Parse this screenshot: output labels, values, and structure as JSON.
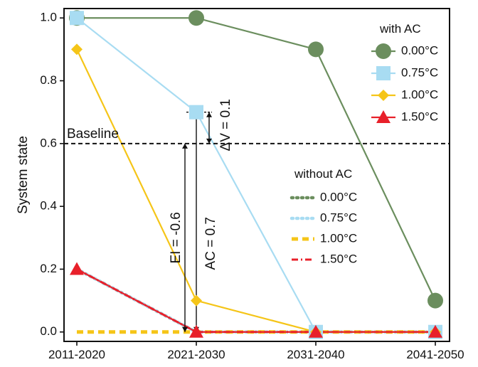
{
  "chart_data": {
    "type": "line",
    "categories": [
      "2011-2020",
      "2021-2030",
      "2031-2040",
      "2041-2050"
    ],
    "ylabel": "System state",
    "xlabel": "",
    "ylim": [
      -0.03,
      1.03
    ],
    "yticks": [
      0.0,
      0.2,
      0.4,
      0.6,
      0.8,
      1.0
    ],
    "ytick_labels": [
      "0.0",
      "0.2",
      "0.4",
      "0.6",
      "0.8",
      "1.0"
    ],
    "grid": false,
    "legend_placement": "right",
    "baseline": {
      "label": "Baseline",
      "value": 0.6
    },
    "with_ac": {
      "legend_title": "with AC",
      "series": [
        {
          "name": "0.00°C",
          "color": "#6b8e5e",
          "marker": "circle",
          "values": [
            1.0,
            1.0,
            0.9,
            0.1
          ]
        },
        {
          "name": "0.75°C",
          "color": "#a8dcf2",
          "marker": "square",
          "values": [
            1.0,
            0.7,
            0.0,
            0.0
          ]
        },
        {
          "name": "1.00°C",
          "color": "#f5c518",
          "marker": "diamond",
          "values": [
            0.9,
            0.1,
            0.0,
            0.0
          ]
        },
        {
          "name": "1.50°C",
          "color": "#e8202a",
          "marker": "triangle",
          "values": [
            0.2,
            0.0,
            0.0,
            0.0
          ]
        }
      ]
    },
    "without_ac": {
      "legend_title": "without AC",
      "series": [
        {
          "name": "0.00°C",
          "color": "#6b8e5e",
          "dash": "dot",
          "values": [
            0.2,
            0.0,
            0.0,
            0.0
          ]
        },
        {
          "name": "0.75°C",
          "color": "#a8dcf2",
          "dash": "dot",
          "values": [
            0.2,
            0.0,
            0.0,
            0.0
          ]
        },
        {
          "name": "1.00°C",
          "color": "#f5c518",
          "dash": "dash",
          "values": [
            0.0,
            0.0,
            0.0,
            0.0
          ]
        },
        {
          "name": "1.50°C",
          "color": "#e8202a",
          "dash": "dashdot",
          "values": [
            0.2,
            0.0,
            0.0,
            0.0
          ]
        }
      ]
    },
    "annotations": [
      {
        "text": "EI = -0.6",
        "category": "2021-2030",
        "from": 0.0,
        "to": 0.6
      },
      {
        "text": "AC = 0.7",
        "category": "2021-2030",
        "from": 0.0,
        "to": 0.7
      },
      {
        "text": "ΔV = 0.1",
        "category": "2021-2030",
        "from": 0.6,
        "to": 0.7
      }
    ]
  }
}
